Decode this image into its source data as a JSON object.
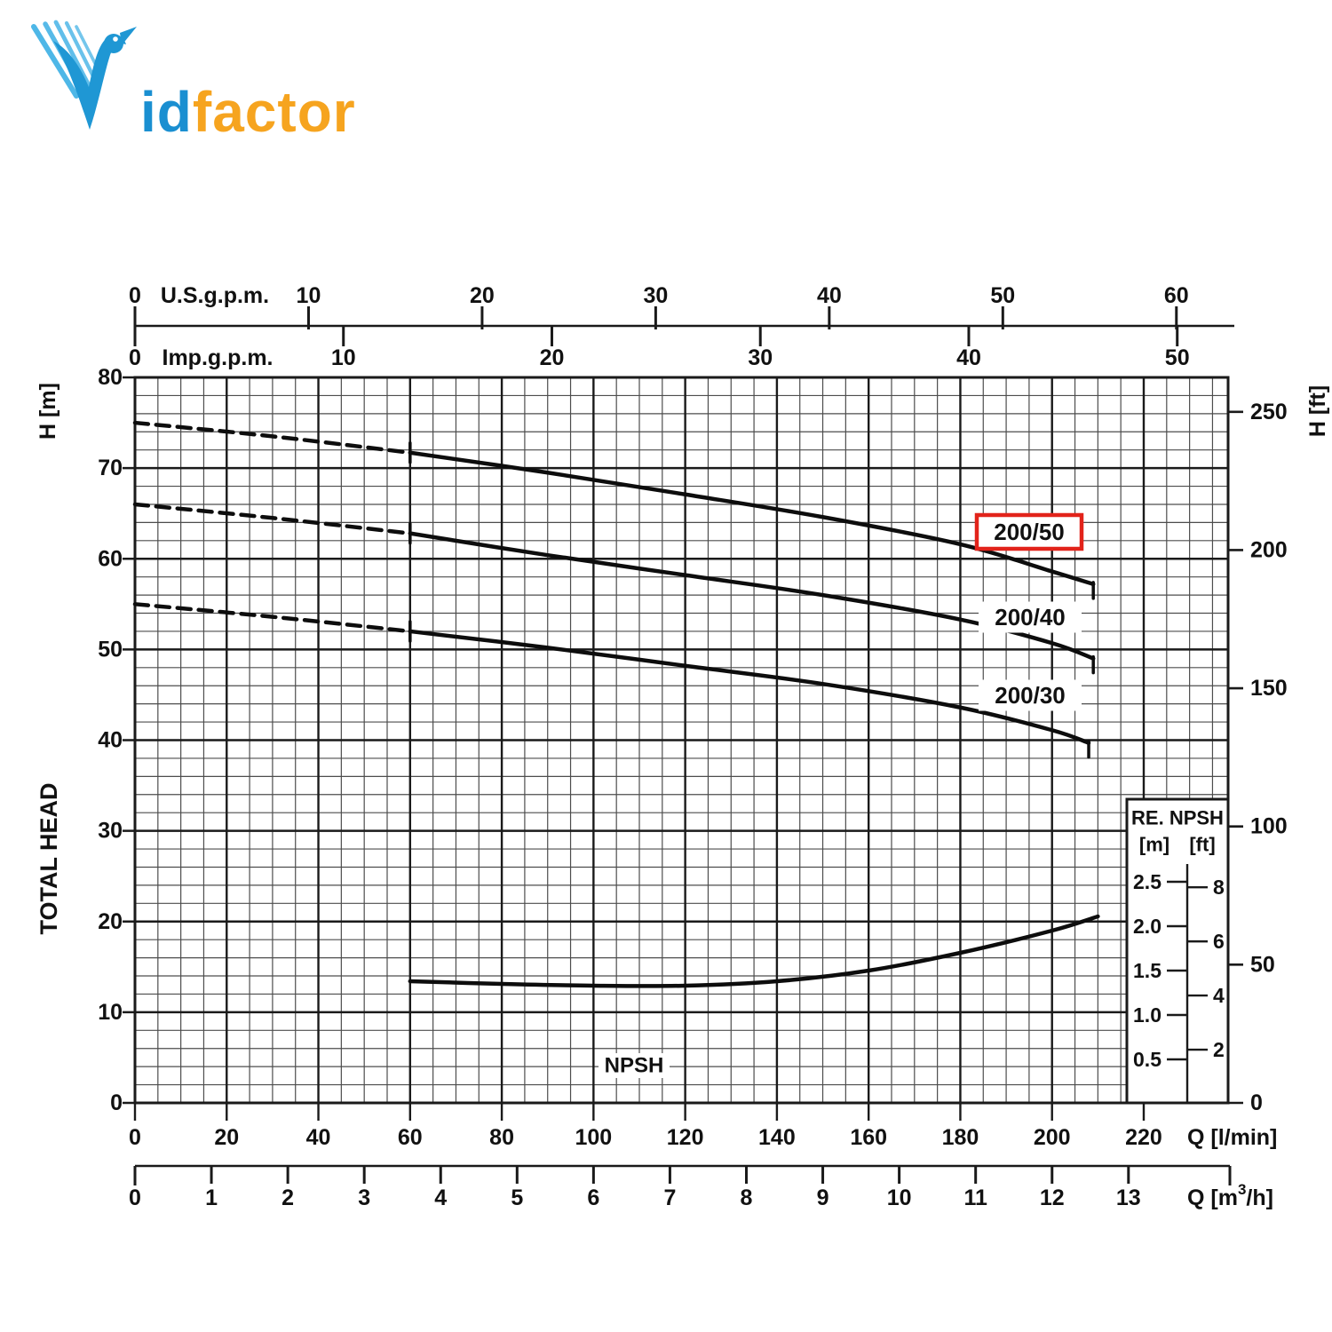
{
  "logo": {
    "id_text": "id",
    "factor_text": "factor",
    "blue": "#1a8fd1",
    "orange": "#f6a41f",
    "bird_icon": "bird-icon"
  },
  "chart_data": {
    "type": "line",
    "title": "Pump performance curves - total head vs flow with NPSH",
    "x_axes": {
      "us_gpm": {
        "label": "U.S.g.p.m.",
        "ticks": [
          0,
          10,
          20,
          30,
          40,
          50,
          60
        ],
        "lmin_per_unit": 3.7854
      },
      "imp_gpm": {
        "label": "Imp.g.p.m.",
        "ticks": [
          0,
          10,
          20,
          30,
          40,
          50
        ],
        "lmin_per_unit": 4.5461
      },
      "l_min": {
        "label": "Q [l/min]",
        "ticks": [
          0,
          20,
          40,
          60,
          80,
          100,
          120,
          140,
          160,
          180,
          200,
          220
        ],
        "range": [
          0,
          238
        ]
      },
      "m3_h": {
        "label_pre": "Q [m",
        "label_sup": "3",
        "label_post": "/h]",
        "ticks": [
          0,
          1,
          2,
          3,
          4,
          5,
          6,
          7,
          8,
          9,
          10,
          11,
          12,
          13
        ],
        "lmin_per_unit": 16.667
      }
    },
    "y_axes": {
      "meters": {
        "label": "H [m]",
        "axis_title": "TOTAL HEAD",
        "ticks": [
          80,
          70,
          60,
          50,
          40,
          30,
          20,
          10,
          0
        ],
        "range": [
          0,
          80
        ],
        "minor_step": 2
      },
      "feet": {
        "label": "H [ft]",
        "ticks": [
          250,
          200,
          150,
          100,
          50,
          0
        ],
        "m_per_unit": 0.3048
      }
    },
    "grid": {
      "minor_x_step_lmin": 5,
      "major_x_step_lmin": 20,
      "minor_y_step_m": 2,
      "major_y_step_m": 10
    },
    "series": [
      {
        "name": "200/50",
        "kind": "head",
        "highlighted": true,
        "dashed_until_lmin": 60,
        "points_lmin_m": [
          [
            0,
            75
          ],
          [
            30,
            73.5
          ],
          [
            60,
            71.7
          ],
          [
            90,
            69.5
          ],
          [
            120,
            67.1
          ],
          [
            150,
            64.6
          ],
          [
            180,
            61.6
          ],
          [
            200,
            58.6
          ],
          [
            209,
            57.2
          ]
        ]
      },
      {
        "name": "200/40",
        "kind": "head",
        "highlighted": false,
        "dashed_until_lmin": 60,
        "points_lmin_m": [
          [
            0,
            66
          ],
          [
            30,
            64.5
          ],
          [
            60,
            62.8
          ],
          [
            90,
            60.4
          ],
          [
            120,
            58.2
          ],
          [
            150,
            56.0
          ],
          [
            180,
            53.3
          ],
          [
            200,
            50.7
          ],
          [
            209,
            49.0
          ]
        ]
      },
      {
        "name": "200/30",
        "kind": "head",
        "highlighted": false,
        "dashed_until_lmin": 60,
        "points_lmin_m": [
          [
            0,
            55
          ],
          [
            30,
            53.6
          ],
          [
            60,
            52.0
          ],
          [
            90,
            50.2
          ],
          [
            120,
            48.2
          ],
          [
            150,
            46.2
          ],
          [
            180,
            43.6
          ],
          [
            200,
            41.1
          ],
          [
            208,
            39.7
          ]
        ]
      },
      {
        "name": "NPSH",
        "kind": "npsh",
        "points_lmin_npshm": [
          [
            60,
            1.38
          ],
          [
            80,
            1.35
          ],
          [
            100,
            1.33
          ],
          [
            120,
            1.33
          ],
          [
            140,
            1.38
          ],
          [
            160,
            1.5
          ],
          [
            180,
            1.7
          ],
          [
            200,
            1.95
          ],
          [
            210,
            2.11
          ]
        ]
      }
    ],
    "curve_labels": [
      {
        "series": "200/50",
        "text": "200/50",
        "highlight_box": true
      },
      {
        "series": "200/40",
        "text": "200/40",
        "highlight_box": false
      },
      {
        "series": "200/30",
        "text": "200/30",
        "highlight_box": false
      },
      {
        "series": "NPSH",
        "text": "NPSH",
        "highlight_box": false
      }
    ],
    "npsh_inset": {
      "title": "RE. NPSH",
      "unit_m": "[m]",
      "unit_ft": "[ft]",
      "m_ticks": [
        "2.5",
        "2.0",
        "1.5",
        "1.0",
        "0.5"
      ],
      "ft_ticks": [
        "8",
        "6",
        "4",
        "2"
      ]
    },
    "colors": {
      "highlight_red": "#e2231a",
      "curve": "#0d0d0d",
      "grid_minor": "#4d4d4d",
      "grid_major": "#1a1a1a",
      "text": "#111111"
    }
  }
}
